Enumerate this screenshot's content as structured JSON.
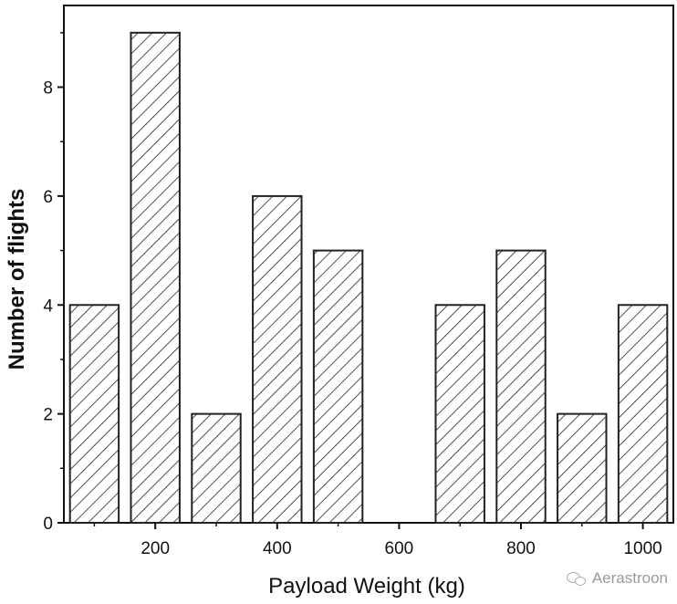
{
  "chart_data": {
    "type": "bar",
    "title": "",
    "xlabel": "Payload Weight (kg)",
    "ylabel": "Number of flights",
    "categories": [
      "100",
      "200",
      "300",
      "400",
      "500",
      "600",
      "700",
      "800",
      "900",
      "1000"
    ],
    "x": [
      100,
      200,
      300,
      400,
      500,
      600,
      700,
      800,
      900,
      1000
    ],
    "values": [
      4,
      9,
      2,
      6,
      5,
      0,
      4,
      5,
      2,
      4
    ],
    "xlim": [
      50,
      1050
    ],
    "ylim": [
      0,
      9.5
    ],
    "xticks": [
      200,
      400,
      600,
      800,
      1000
    ],
    "xtick_labels": [
      "200",
      "400",
      "600",
      "800",
      "1000"
    ],
    "yticks": [
      0,
      2,
      4,
      6,
      8
    ],
    "ytick_labels": [
      "0",
      "2",
      "4",
      "6",
      "8"
    ],
    "bar_pattern": "diagonal-hatch",
    "bar_color": "#222222",
    "grid": false,
    "legend": null
  },
  "watermark": {
    "icon": "wechat-icon",
    "text": "Aerastroon"
  }
}
